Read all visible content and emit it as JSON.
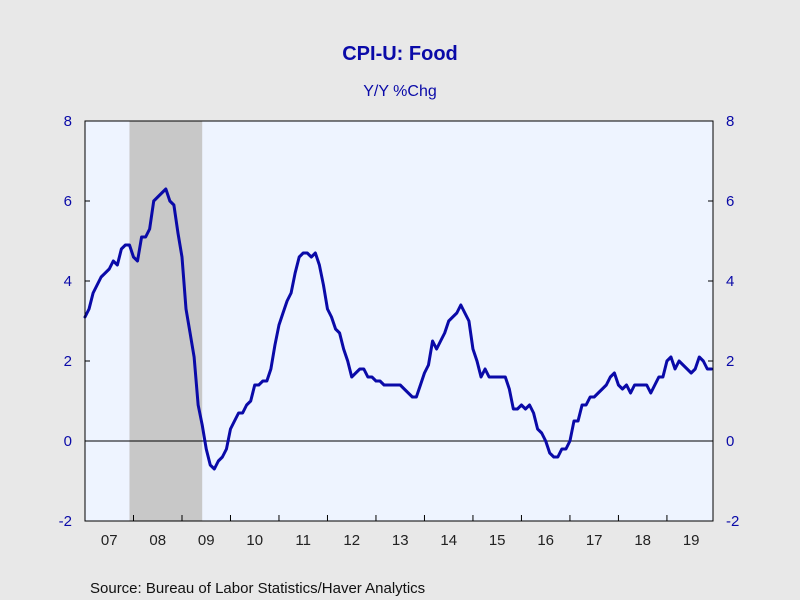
{
  "chart_data": {
    "type": "line",
    "title": "CPI-U: Food",
    "subtitle": "Y/Y %Chg",
    "source": "Source:  Bureau of Labor Statistics/Haver Analytics",
    "ylim": [
      -2,
      8
    ],
    "yticks": [
      -2,
      0,
      2,
      4,
      6,
      8
    ],
    "ytick_labels": [
      "-2",
      "0",
      "2",
      "4",
      "6",
      "8"
    ],
    "xlim": [
      2007.0,
      2019.95
    ],
    "xtick_labels": [
      "07",
      "08",
      "09",
      "10",
      "11",
      "12",
      "13",
      "14",
      "15",
      "16",
      "17",
      "18",
      "19"
    ],
    "recession_band": [
      2007.917,
      2009.417
    ],
    "colors": {
      "line": "#0a0aa8",
      "recession": "#c8c8c8",
      "plot_bg": "#eef4ff",
      "page_bg": "#e8e8e8"
    },
    "grid": false,
    "series": [
      {
        "x": [
          2007.0,
          2007.083,
          2007.167,
          2007.25,
          2007.333,
          2007.417,
          2007.5,
          2007.583,
          2007.667,
          2007.75,
          2007.833,
          2007.917,
          2008.0,
          2008.083,
          2008.167,
          2008.25,
          2008.333,
          2008.417,
          2008.5,
          2008.583,
          2008.667,
          2008.75,
          2008.833,
          2008.917,
          2009.0,
          2009.083,
          2009.167,
          2009.25,
          2009.333,
          2009.417,
          2009.5,
          2009.583,
          2009.667,
          2009.75,
          2009.833,
          2009.917,
          2010.0,
          2010.083,
          2010.167,
          2010.25,
          2010.333,
          2010.417,
          2010.5,
          2010.583,
          2010.667,
          2010.75,
          2010.833,
          2010.917,
          2011.0,
          2011.083,
          2011.167,
          2011.25,
          2011.333,
          2011.417,
          2011.5,
          2011.583,
          2011.667,
          2011.75,
          2011.833,
          2011.917,
          2012.0,
          2012.083,
          2012.167,
          2012.25,
          2012.333,
          2012.417,
          2012.5,
          2012.583,
          2012.667,
          2012.75,
          2012.833,
          2012.917,
          2013.0,
          2013.083,
          2013.167,
          2013.25,
          2013.333,
          2013.417,
          2013.5,
          2013.583,
          2013.667,
          2013.75,
          2013.833,
          2013.917,
          2014.0,
          2014.083,
          2014.167,
          2014.25,
          2014.333,
          2014.417,
          2014.5,
          2014.583,
          2014.667,
          2014.75,
          2014.833,
          2014.917,
          2015.0,
          2015.083,
          2015.167,
          2015.25,
          2015.333,
          2015.417,
          2015.5,
          2015.583,
          2015.667,
          2015.75,
          2015.833,
          2015.917,
          2016.0,
          2016.083,
          2016.167,
          2016.25,
          2016.333,
          2016.417,
          2016.5,
          2016.583,
          2016.667,
          2016.75,
          2016.833,
          2016.917,
          2017.0,
          2017.083,
          2017.167,
          2017.25,
          2017.333,
          2017.417,
          2017.5,
          2017.583,
          2017.667,
          2017.75,
          2017.833,
          2017.917,
          2018.0,
          2018.083,
          2018.167,
          2018.25,
          2018.333,
          2018.417,
          2018.5,
          2018.583,
          2018.667,
          2018.75,
          2018.833,
          2018.917,
          2019.0,
          2019.083,
          2019.167,
          2019.25,
          2019.333,
          2019.417,
          2019.5,
          2019.583,
          2019.667,
          2019.75,
          2019.833,
          2019.917
        ],
        "values": [
          3.1,
          3.3,
          3.7,
          3.9,
          4.1,
          4.2,
          4.3,
          4.5,
          4.4,
          4.8,
          4.9,
          4.9,
          4.6,
          4.5,
          5.1,
          5.1,
          5.3,
          6.0,
          6.1,
          6.2,
          6.3,
          6.0,
          5.9,
          5.2,
          4.6,
          3.3,
          2.7,
          2.1,
          0.9,
          0.4,
          -0.2,
          -0.6,
          -0.7,
          -0.5,
          -0.4,
          -0.2,
          0.3,
          0.5,
          0.7,
          0.7,
          0.9,
          1.0,
          1.4,
          1.4,
          1.5,
          1.5,
          1.8,
          2.4,
          2.9,
          3.2,
          3.5,
          3.7,
          4.2,
          4.6,
          4.7,
          4.7,
          4.6,
          4.7,
          4.4,
          3.9,
          3.3,
          3.1,
          2.8,
          2.7,
          2.3,
          2.0,
          1.6,
          1.7,
          1.8,
          1.8,
          1.6,
          1.6,
          1.5,
          1.5,
          1.4,
          1.4,
          1.4,
          1.4,
          1.4,
          1.3,
          1.2,
          1.1,
          1.1,
          1.4,
          1.7,
          1.9,
          2.5,
          2.3,
          2.5,
          2.7,
          3.0,
          3.1,
          3.2,
          3.4,
          3.2,
          3.0,
          2.3,
          2.0,
          1.6,
          1.8,
          1.6,
          1.6,
          1.6,
          1.6,
          1.6,
          1.3,
          0.8,
          0.8,
          0.9,
          0.8,
          0.9,
          0.7,
          0.3,
          0.2,
          0.0,
          -0.3,
          -0.4,
          -0.4,
          -0.2,
          -0.2,
          0.0,
          0.5,
          0.5,
          0.9,
          0.9,
          1.1,
          1.1,
          1.2,
          1.3,
          1.4,
          1.6,
          1.7,
          1.4,
          1.3,
          1.4,
          1.2,
          1.4,
          1.4,
          1.4,
          1.4,
          1.2,
          1.4,
          1.6,
          1.6,
          2.0,
          2.1,
          1.8,
          2.0,
          1.9,
          1.8,
          1.7,
          1.8,
          2.1,
          2.0,
          1.8,
          1.8
        ]
      }
    ]
  }
}
